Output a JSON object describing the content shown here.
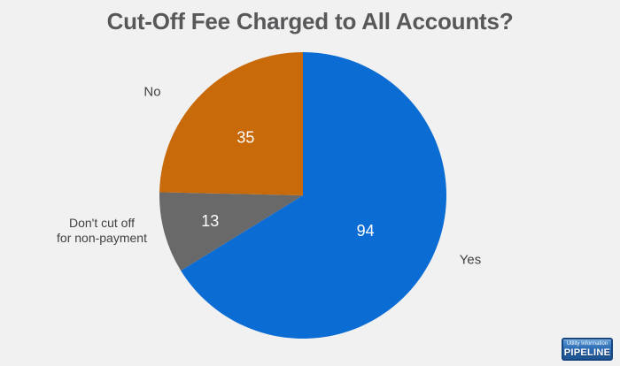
{
  "window": {
    "background": "#f1f1f1"
  },
  "chart_data": {
    "type": "pie",
    "title": "Cut-Off Fee Charged to All Accounts?",
    "total": 142,
    "start_angle_deg": -90,
    "direction": "clockwise",
    "value_label_color": "#ffffff",
    "legend_position": "outside-labels",
    "slices": [
      {
        "label": "Yes",
        "value": 94,
        "color": "#0b6cd4",
        "label_radius_frac": 0.5,
        "label_lines": [
          "Yes"
        ]
      },
      {
        "label": "Don't cut off for non-payment",
        "value": 13,
        "color": "#696969",
        "label_radius_frac": 0.67,
        "label_lines": [
          "Don't cut off",
          "for non-payment"
        ]
      },
      {
        "label": "No",
        "value": 35,
        "color": "#c8690a",
        "label_radius_frac": 0.57,
        "label_lines": [
          "No"
        ]
      }
    ]
  },
  "logo": {
    "line1": "Utility Information",
    "line2": "PIPELINE"
  }
}
